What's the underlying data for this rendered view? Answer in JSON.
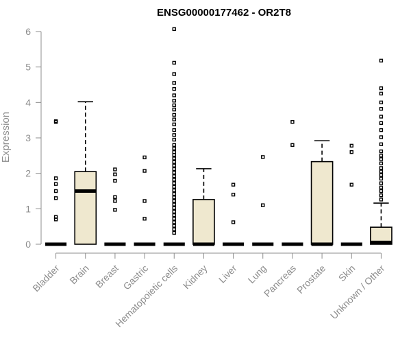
{
  "chart_data": {
    "type": "boxplot",
    "title": "ENSG00000177462 - OR2T8",
    "ylabel": "Expression",
    "ylim": [
      0,
      6
    ],
    "yticks": [
      0,
      1,
      2,
      3,
      4,
      5,
      6
    ],
    "box_fill": "#efe8cf",
    "categories": [
      "Bladder",
      "Brain",
      "Breast",
      "Gastric",
      "Hematopoietic cells",
      "Kidney",
      "Liver",
      "Lung",
      "Pancreas",
      "Prostate",
      "Skin",
      "Unknown / Other"
    ],
    "boxes": [
      {
        "category": "Bladder",
        "min": 0,
        "q1": 0,
        "median": 0,
        "q3": 0,
        "max": 0,
        "outliers": [
          3.47,
          3.45,
          1.86,
          1.7,
          1.5,
          1.3,
          0.77,
          0.7
        ]
      },
      {
        "category": "Brain",
        "min": 0,
        "q1": 0,
        "median": 1.5,
        "q3": 2.05,
        "max": 4.02,
        "outliers": []
      },
      {
        "category": "Breast",
        "min": 0,
        "q1": 0,
        "median": 0,
        "q3": 0,
        "max": 0,
        "outliers": [
          2.11,
          1.97,
          1.79,
          1.33,
          1.22,
          0.97
        ]
      },
      {
        "category": "Gastric",
        "min": 0,
        "q1": 0,
        "median": 0,
        "q3": 0,
        "max": 0,
        "outliers": [
          2.45,
          2.07,
          1.22,
          0.72
        ]
      },
      {
        "category": "Hematopoietic cells",
        "min": 0,
        "q1": 0,
        "median": 0,
        "q3": 0,
        "max": 0,
        "outliers": [
          6.07,
          5.12,
          4.8,
          4.55,
          4.38,
          4.2,
          4.05,
          3.92,
          3.8,
          3.65,
          3.52,
          3.38,
          3.22,
          3.08,
          2.95,
          2.8,
          2.7,
          2.6,
          2.52,
          2.42,
          2.32,
          2.22,
          2.12,
          2.02,
          1.92,
          1.82,
          1.72,
          1.62,
          1.52,
          1.42,
          1.32,
          1.22,
          1.12,
          1.02,
          0.92,
          0.82,
          0.72,
          0.62,
          0.52,
          0.42,
          0.32
        ]
      },
      {
        "category": "Kidney",
        "min": 0,
        "q1": 0,
        "median": 0,
        "q3": 1.26,
        "max": 2.13,
        "outliers": []
      },
      {
        "category": "Liver",
        "min": 0,
        "q1": 0,
        "median": 0,
        "q3": 0,
        "max": 0,
        "outliers": [
          1.68,
          1.4,
          0.62
        ]
      },
      {
        "category": "Lung",
        "min": 0,
        "q1": 0,
        "median": 0,
        "q3": 0,
        "max": 0,
        "outliers": [
          2.46,
          1.1
        ]
      },
      {
        "category": "Pancreas",
        "min": 0,
        "q1": 0,
        "median": 0,
        "q3": 0,
        "max": 0,
        "outliers": [
          3.45,
          2.8
        ]
      },
      {
        "category": "Prostate",
        "min": 0,
        "q1": 0,
        "median": 0,
        "q3": 2.33,
        "max": 2.92,
        "outliers": []
      },
      {
        "category": "Skin",
        "min": 0,
        "q1": 0,
        "median": 0,
        "q3": 0,
        "max": 0,
        "outliers": [
          2.78,
          2.6,
          1.68
        ]
      },
      {
        "category": "Unknown / Other",
        "min": 0,
        "q1": 0,
        "median": 0.05,
        "q3": 0.48,
        "max": 1.16,
        "outliers": [
          5.18,
          4.4,
          4.25,
          4.0,
          3.82,
          3.6,
          3.42,
          3.22,
          3.02,
          2.82,
          2.62,
          2.5,
          2.4,
          2.28,
          2.15,
          2.05,
          1.95,
          1.85,
          1.72,
          1.6,
          1.5,
          1.38,
          1.26
        ]
      }
    ]
  }
}
